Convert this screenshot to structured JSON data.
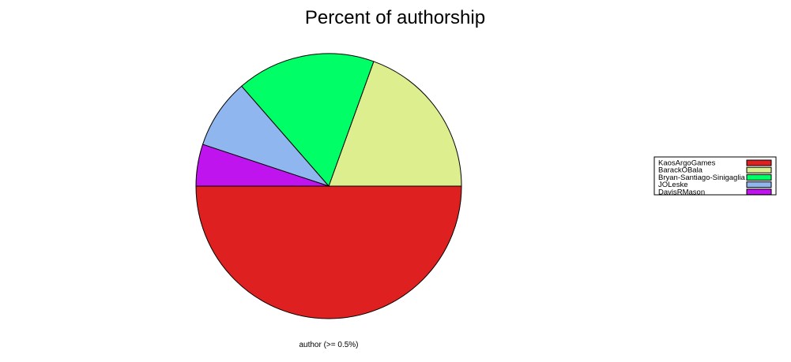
{
  "chart_data": {
    "type": "pie",
    "title": "Percent of authorship",
    "xlabel": "author (>= 0.5%)",
    "legend_position": "right",
    "series": [
      {
        "name": "KaosArgoGames",
        "value": 50.0,
        "color": "#DF2020"
      },
      {
        "name": "BarackOBala",
        "value": 19.5,
        "color": "#DDEE8F"
      },
      {
        "name": "Bryan-Santiago-Sinigaglia",
        "value": 16.9,
        "color": "#00FF66"
      },
      {
        "name": "JOLeske",
        "value": 8.5,
        "color": "#8FB6EE"
      },
      {
        "name": "DavisRMason",
        "value": 5.1,
        "color": "#C014EE"
      }
    ]
  }
}
